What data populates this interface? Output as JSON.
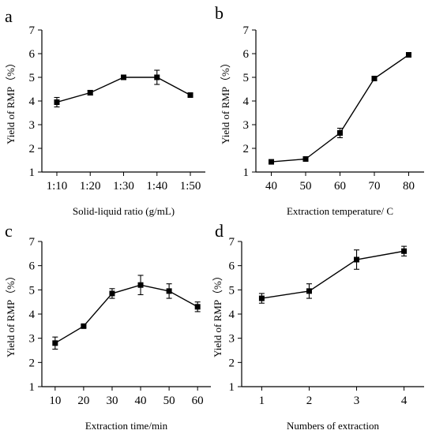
{
  "chart_data": [
    {
      "type": "line",
      "panel_label": "a",
      "xlabel": "Solid-liquid ratio (g/mL)",
      "ylabel": "Yield of RMP（%）",
      "categories": [
        "1:10",
        "1:20",
        "1:30",
        "1:40",
        "1:50"
      ],
      "values": [
        3.95,
        4.35,
        5.0,
        5.0,
        4.25
      ],
      "errors": [
        0.2,
        0.1,
        0.03,
        0.3,
        0.06
      ],
      "ylim": [
        1,
        7
      ],
      "yticks": [
        "1",
        "2",
        "3",
        "4",
        "5",
        "6",
        "7"
      ],
      "grid": false
    },
    {
      "type": "line",
      "panel_label": "b",
      "xlabel": "Extraction temperature/ C",
      "ylabel": "Yield of RMP（%）",
      "categories": [
        "40",
        "50",
        "60",
        "70",
        "80"
      ],
      "values": [
        1.43,
        1.55,
        2.65,
        4.95,
        5.95
      ],
      "errors": [
        0.05,
        0.05,
        0.2,
        0.05,
        0.08
      ],
      "ylim": [
        1,
        7
      ],
      "yticks": [
        "1",
        "2",
        "3",
        "4",
        "5",
        "6",
        "7"
      ],
      "grid": false
    },
    {
      "type": "line",
      "panel_label": "c",
      "xlabel": "Extraction time/min",
      "ylabel": "Yield of RMP（%）",
      "categories": [
        "10",
        "20",
        "30",
        "40",
        "50",
        "60"
      ],
      "values": [
        2.8,
        3.5,
        4.85,
        5.2,
        4.95,
        4.3
      ],
      "errors": [
        0.25,
        0.05,
        0.2,
        0.4,
        0.3,
        0.2
      ],
      "ylim": [
        1,
        7
      ],
      "yticks": [
        "1",
        "2",
        "3",
        "4",
        "5",
        "6",
        "7"
      ],
      "grid": false
    },
    {
      "type": "line",
      "panel_label": "d",
      "xlabel": "Numbers of extraction",
      "ylabel": "Yield of RMP（%）",
      "categories": [
        "1",
        "2",
        "3",
        "4"
      ],
      "values": [
        4.65,
        4.95,
        6.25,
        6.6
      ],
      "errors": [
        0.2,
        0.3,
        0.4,
        0.2
      ],
      "ylim": [
        1,
        7
      ],
      "yticks": [
        "1",
        "2",
        "3",
        "4",
        "5",
        "6",
        "7"
      ],
      "grid": false
    }
  ]
}
